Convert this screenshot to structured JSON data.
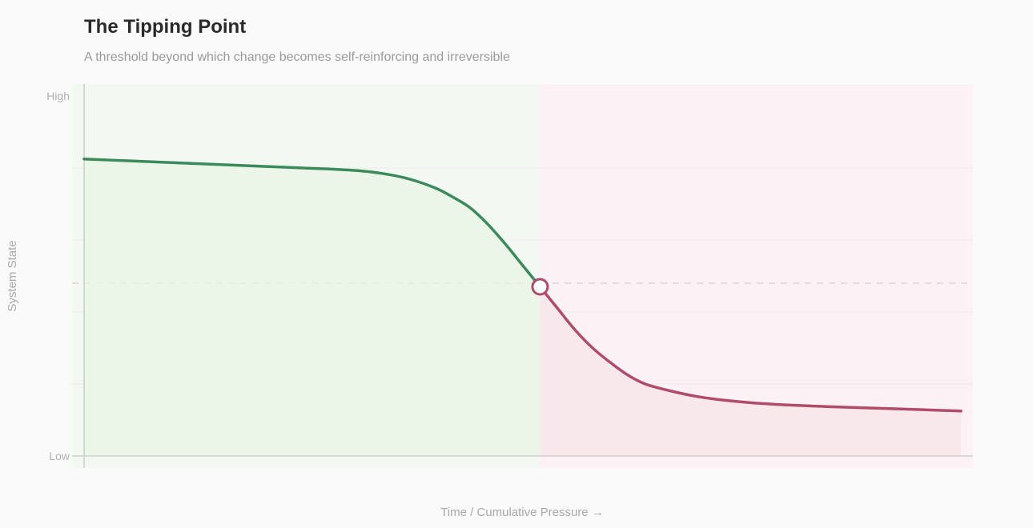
{
  "header": {
    "title": "The Tipping Point",
    "subtitle": "A threshold beyond which change becomes self-reinforcing and irreversible"
  },
  "chart_data": {
    "type": "line",
    "title": "The Tipping Point",
    "subtitle": "A threshold beyond which change becomes self-reinforcing and irreversible",
    "xlabel": "Time / Cumulative Pressure →",
    "ylabel": "System State",
    "ylim": [
      0,
      1
    ],
    "y_ticks": [
      {
        "value": 0,
        "label": "Low"
      },
      {
        "value": 1,
        "label": "High"
      }
    ],
    "xlim": [
      0,
      1
    ],
    "grid": true,
    "threshold_level": 0.48,
    "tipping_point": {
      "x": 0.52,
      "y": 0.47
    },
    "series": [
      {
        "segment": "stable",
        "color": "#3a8a5c",
        "x": [
          0,
          0.05,
          0.1,
          0.15,
          0.2,
          0.25,
          0.28,
          0.31,
          0.34,
          0.37,
          0.4,
          0.42,
          0.44,
          0.46,
          0.48,
          0.5,
          0.52
        ],
        "y": [
          0.825,
          0.82,
          0.815,
          0.81,
          0.805,
          0.8,
          0.797,
          0.793,
          0.785,
          0.77,
          0.745,
          0.72,
          0.69,
          0.645,
          0.59,
          0.53,
          0.47
        ]
      },
      {
        "segment": "collapsed",
        "color": "#b04c6a",
        "x": [
          0.52,
          0.54,
          0.56,
          0.58,
          0.6,
          0.62,
          0.64,
          0.67,
          0.7,
          0.73,
          0.76,
          0.8,
          0.85,
          0.9,
          0.95,
          1.0
        ],
        "y": [
          0.47,
          0.41,
          0.35,
          0.3,
          0.26,
          0.225,
          0.2,
          0.18,
          0.165,
          0.155,
          0.148,
          0.142,
          0.137,
          0.133,
          0.129,
          0.125
        ]
      }
    ],
    "region_colors": {
      "stable": "#f3f9f2",
      "collapsed": "#fcf1f4"
    }
  }
}
